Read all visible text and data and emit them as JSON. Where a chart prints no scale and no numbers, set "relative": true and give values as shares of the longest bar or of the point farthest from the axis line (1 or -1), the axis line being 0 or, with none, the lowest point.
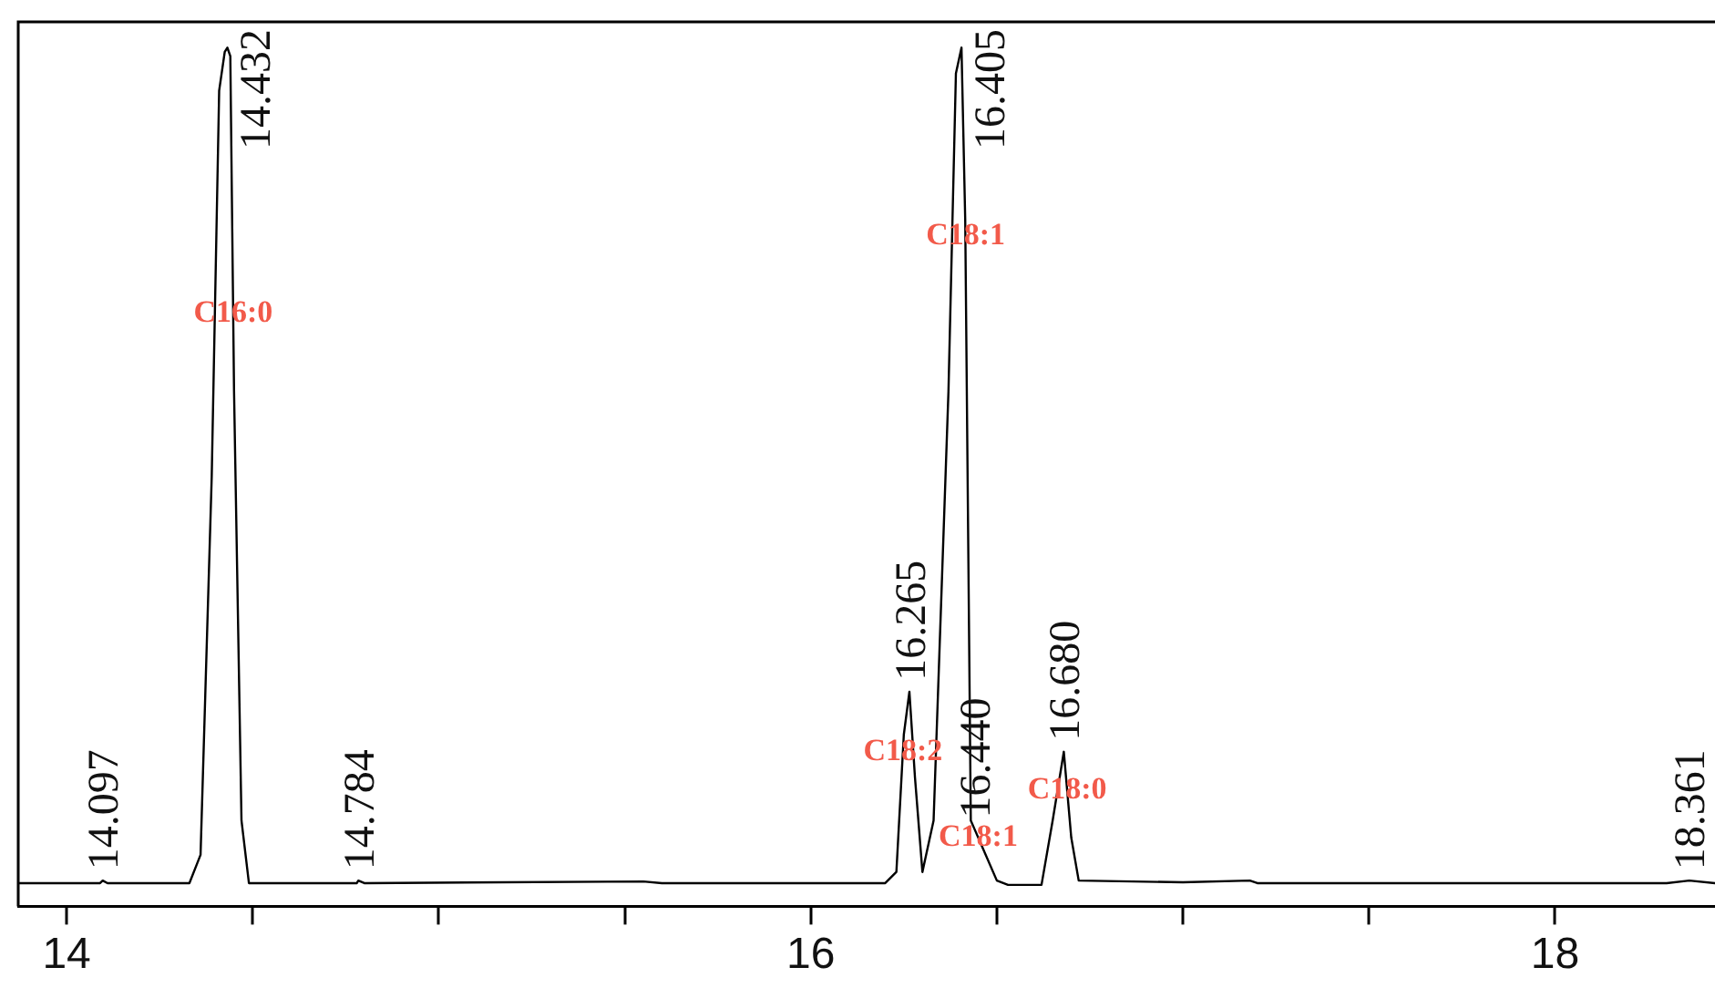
{
  "chart_data": {
    "type": "line",
    "relative": true,
    "marker": "none",
    "grid": false,
    "legend": false,
    "tick_labels": "x",
    "line_style": "solid",
    "xlim": [
      13.87,
      18.43
    ],
    "xticks": [
      14,
      {
        "value": 14.5,
        "label": null
      },
      {
        "value": 15,
        "label": null
      },
      {
        "value": 15.5,
        "label": null
      },
      16,
      {
        "value": 16.5,
        "label": null
      },
      {
        "value": 17,
        "label": null
      },
      {
        "value": 17.5,
        "label": null
      },
      18
    ],
    "series": [
      {
        "color": "#000000",
        "x": [
          13.87,
          14.09,
          14.097,
          14.11,
          14.33,
          14.36,
          14.39,
          14.41,
          14.425,
          14.432,
          14.44,
          14.45,
          14.47,
          14.49,
          14.78,
          14.784,
          14.8,
          15.55,
          15.6,
          16.2,
          16.23,
          16.25,
          16.265,
          16.28,
          16.3,
          16.33,
          16.37,
          16.39,
          16.405,
          16.415,
          16.43,
          16.44,
          16.46,
          16.5,
          16.53,
          16.62,
          16.65,
          16.68,
          16.7,
          16.72,
          17.0,
          17.18,
          17.2,
          18.3,
          18.361,
          18.43
        ],
        "values": [
          0.027,
          0.027,
          0.03,
          0.027,
          0.027,
          0.06,
          0.5,
          0.95,
          0.995,
          1,
          0.99,
          0.6,
          0.1,
          0.027,
          0.027,
          0.03,
          0.027,
          0.029,
          0.027,
          0.027,
          0.04,
          0.2,
          0.25,
          0.15,
          0.04,
          0.1,
          0.6,
          0.97,
          1,
          0.8,
          0.1,
          0.09,
          0.07,
          0.03,
          0.025,
          0.025,
          0.1,
          0.18,
          0.08,
          0.03,
          0.028,
          0.03,
          0.027,
          0.027,
          0.03,
          0.027
        ]
      }
    ],
    "annotations": [
      {
        "text": "C16:0",
        "x": 14.4475,
        "y": 0.69
      },
      {
        "text": "C18:1",
        "x": 16.416,
        "y": 0.78
      },
      {
        "text": "C18:2",
        "x": 16.2475,
        "y": 0.18
      },
      {
        "text": "C18:1",
        "x": 16.45,
        "y": 0.08
      },
      {
        "text": "C18:0",
        "x": 16.689,
        "y": 0.135
      },
      {
        "text": "14.097",
        "x": 14.097,
        "y": 0.03
      },
      {
        "text": "14.432",
        "x": 14.432,
        "y": 1
      },
      {
        "text": "14.784",
        "x": 14.784,
        "y": 0.03
      },
      {
        "text": "16.265",
        "x": 16.265,
        "y": 0.25
      },
      {
        "text": "16.405",
        "x": 16.405,
        "y": 1
      },
      {
        "text": "16.440",
        "x": 16.44,
        "y": 0.09
      },
      {
        "text": "16.680",
        "x": 16.68,
        "y": 0.18
      },
      {
        "text": "18.361",
        "x": 18.361,
        "y": 0.03
      }
    ]
  }
}
